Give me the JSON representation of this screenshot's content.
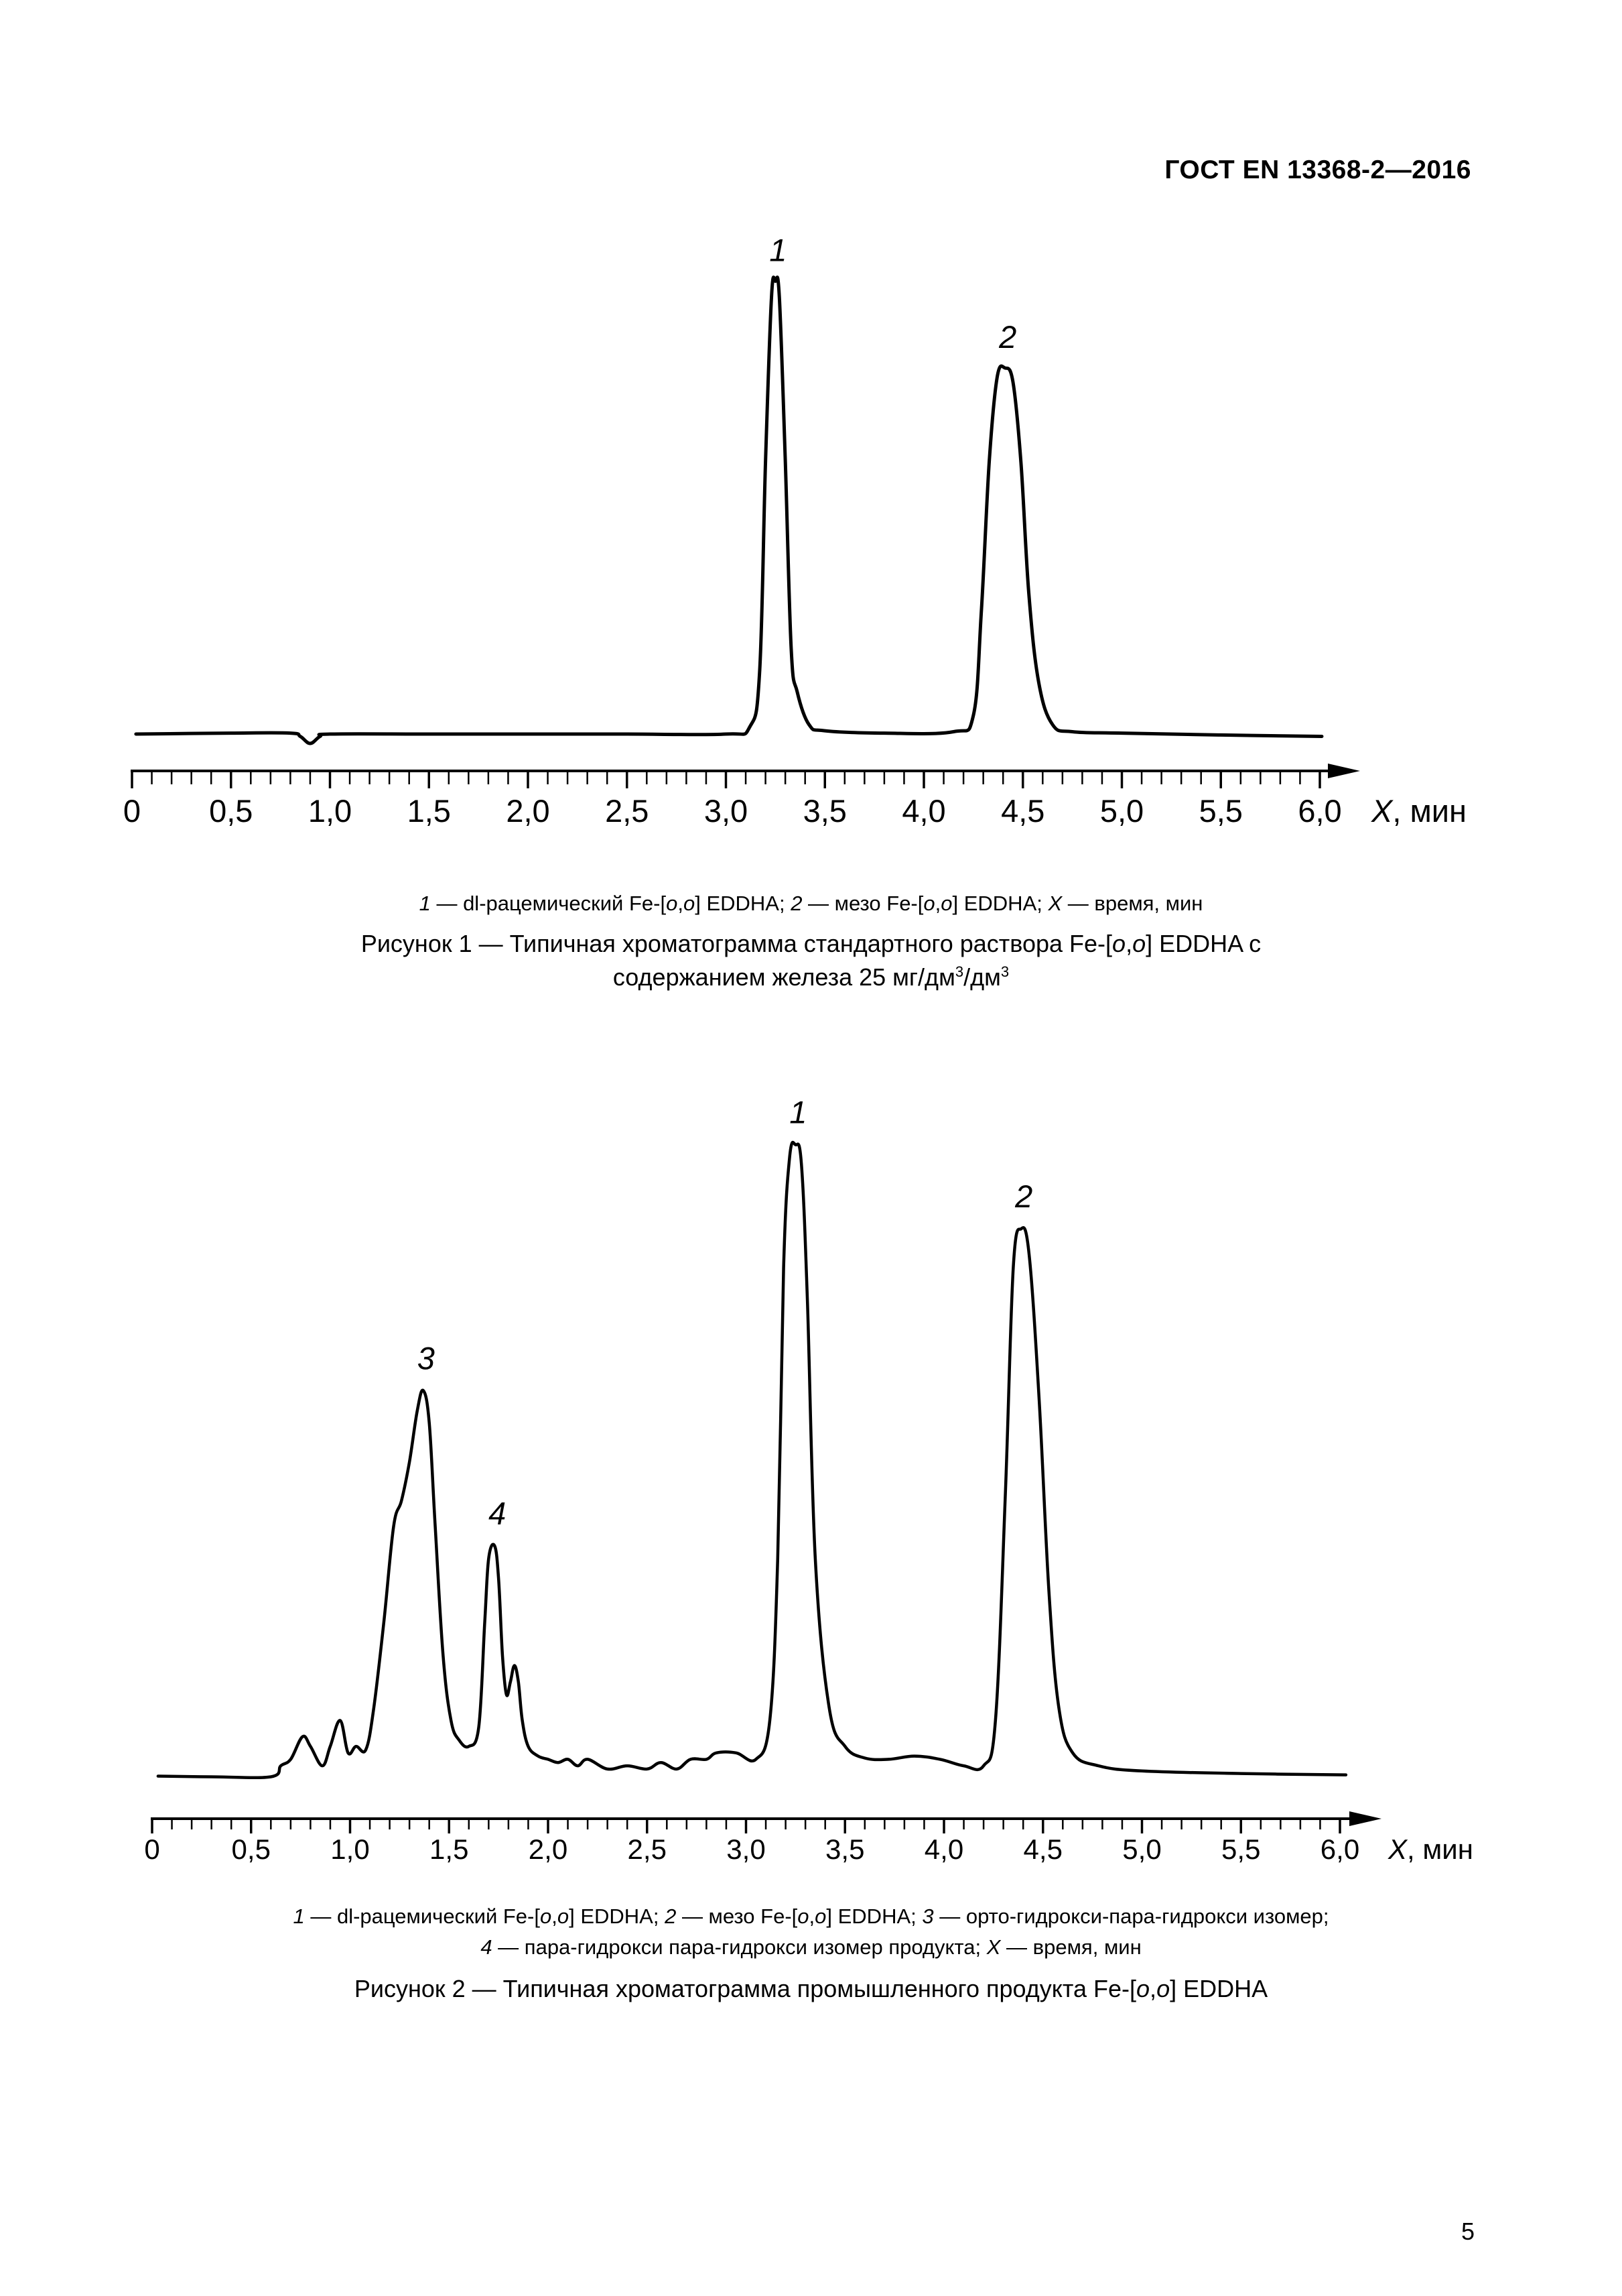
{
  "header": {
    "standard": "ГОСТ EN 13368-2—2016"
  },
  "page_number": "5",
  "chart_data": [
    {
      "type": "line",
      "title": "Рисунок 1 — Типичная хроматограмма стандартного раствора Fe-[o,o] EDDHA с содержанием железа 25 мг/дм3/дм3",
      "xlabel": "X, мин",
      "xlim": [
        0,
        6.25
      ],
      "ylim": [
        0,
        1.0
      ],
      "x_tick_labels": [
        "0",
        "0,5",
        "1,0",
        "1,5",
        "2,0",
        "2,5",
        "3,0",
        "3,5",
        "4,0",
        "4,5",
        "5,0",
        "5,5",
        "6,0"
      ],
      "y_axis_shown": false,
      "grid": false,
      "peaks": [
        {
          "label": "1",
          "x": 3.25,
          "y": 0.985
        },
        {
          "label": "2",
          "x": 4.41,
          "y": 0.8
        }
      ],
      "series": [
        {
          "x": [
            0.02,
            0.5,
            0.8,
            0.85,
            0.9,
            0.95,
            1.0,
            1.5,
            2.0,
            2.5,
            3.0,
            3.12,
            3.17,
            3.2,
            3.23,
            3.25,
            3.27,
            3.3,
            3.33,
            3.36,
            3.42,
            3.5,
            3.8,
            4.15,
            4.25,
            4.29,
            4.33,
            4.37,
            4.41,
            4.45,
            4.49,
            4.53,
            4.58,
            4.65,
            4.75,
            5.0,
            5.5,
            6.01
          ],
          "y": [
            0.02,
            0.022,
            0.022,
            0.015,
            0.0,
            0.015,
            0.02,
            0.02,
            0.02,
            0.02,
            0.02,
            0.035,
            0.15,
            0.6,
            0.95,
            0.985,
            0.95,
            0.6,
            0.2,
            0.11,
            0.04,
            0.027,
            0.022,
            0.025,
            0.06,
            0.28,
            0.6,
            0.78,
            0.8,
            0.77,
            0.6,
            0.32,
            0.13,
            0.04,
            0.025,
            0.022,
            0.018,
            0.015
          ]
        }
      ]
    },
    {
      "type": "line",
      "title": "Рисунок 2 — Типичная хроматограмма промышленного продукта Fe-[o,o] EDDHA",
      "xlabel": "X, мин",
      "xlim": [
        0,
        6.25
      ],
      "ylim": [
        0,
        1.0
      ],
      "x_tick_labels": [
        "0",
        "0,5",
        "1,0",
        "1,5",
        "2,0",
        "2,5",
        "3,0",
        "3,5",
        "4,0",
        "4,5",
        "5,0",
        "5,5",
        "6,0"
      ],
      "y_axis_shown": false,
      "grid": false,
      "peaks": [
        {
          "label": "1",
          "x": 3.25,
          "y": 0.99
        },
        {
          "label": "2",
          "x": 4.39,
          "y": 0.86
        },
        {
          "label": "3",
          "x": 1.37,
          "y": 0.61
        },
        {
          "label": "4",
          "x": 1.73,
          "y": 0.37
        }
      ],
      "series": [
        {
          "x": [
            0.03,
            0.3,
            0.6,
            0.65,
            0.7,
            0.76,
            0.8,
            0.86,
            0.9,
            0.95,
            0.99,
            1.03,
            1.08,
            1.12,
            1.17,
            1.22,
            1.26,
            1.3,
            1.34,
            1.37,
            1.4,
            1.43,
            1.47,
            1.51,
            1.55,
            1.6,
            1.65,
            1.68,
            1.7,
            1.73,
            1.75,
            1.77,
            1.79,
            1.81,
            1.83,
            1.85,
            1.87,
            1.9,
            1.95,
            2.0,
            2.05,
            2.1,
            2.15,
            2.2,
            2.3,
            2.4,
            2.5,
            2.57,
            2.65,
            2.72,
            2.8,
            2.85,
            2.95,
            3.05,
            3.12,
            3.16,
            3.19,
            3.22,
            3.25,
            3.28,
            3.31,
            3.35,
            3.42,
            3.5,
            3.6,
            3.72,
            3.85,
            3.98,
            4.1,
            4.2,
            4.26,
            4.31,
            4.35,
            4.39,
            4.43,
            4.48,
            4.53,
            4.58,
            4.65,
            4.78,
            5.0,
            5.5,
            6.03
          ],
          "y": [
            0.014,
            0.013,
            0.013,
            0.03,
            0.04,
            0.075,
            0.06,
            0.03,
            0.06,
            0.1,
            0.05,
            0.06,
            0.055,
            0.12,
            0.25,
            0.4,
            0.44,
            0.5,
            0.58,
            0.61,
            0.56,
            0.4,
            0.2,
            0.1,
            0.07,
            0.06,
            0.09,
            0.25,
            0.35,
            0.37,
            0.32,
            0.2,
            0.14,
            0.16,
            0.185,
            0.16,
            0.1,
            0.06,
            0.045,
            0.04,
            0.035,
            0.04,
            0.03,
            0.04,
            0.025,
            0.03,
            0.025,
            0.035,
            0.025,
            0.04,
            0.04,
            0.05,
            0.05,
            0.04,
            0.1,
            0.35,
            0.8,
            0.97,
            0.99,
            0.96,
            0.75,
            0.35,
            0.12,
            0.06,
            0.042,
            0.04,
            0.045,
            0.04,
            0.03,
            0.03,
            0.1,
            0.45,
            0.8,
            0.86,
            0.82,
            0.6,
            0.3,
            0.12,
            0.05,
            0.03,
            0.022,
            0.018,
            0.016
          ]
        }
      ]
    }
  ],
  "figure1": {
    "legend": {
      "n1": "1",
      "t1": " — dl-рацемический Fe-[",
      "o1a": "o",
      "c1": ",",
      "o1b": "o",
      "t1b": "] EDDHA; ",
      "n2": "2",
      "t2": " — мезо Fe-[",
      "o2a": "o",
      "c2": ",",
      "o2b": "o",
      "t2b": "] EDDHA; ",
      "nx": "X",
      "tx": " — время, мин"
    },
    "caption": {
      "line1a": "Рисунок 1 — Типичная хроматограмма стандартного раствора Fe-[",
      "o_a": "o",
      "comma": ",",
      "o_b": "o",
      "line1b": "] EDDHA с",
      "line2a": "содержанием железа 25 мг/дм",
      "sup1": "3",
      "line2b": "/дм",
      "sup2": "3"
    }
  },
  "figure2": {
    "legend": {
      "n1": "1",
      "t1": " — dl-рацемический Fe-[",
      "o1a": "o",
      "c1": ",",
      "o1b": "o",
      "t1b": "] EDDHA; ",
      "n2": "2",
      "t2": " — мезо Fe-[",
      "o2a": "o",
      "c2": ",",
      "o2b": "o",
      "t2b": "] EDDHA; ",
      "n3": "3",
      "t3": " — орто-гидрокси-пара-гидрокси изомер;",
      "n4": "4",
      "t4": " — пара-гидрокси пара-гидрокси изомер продукта; ",
      "nx": "X",
      "tx": " — время, мин"
    },
    "caption": {
      "line1a": "Рисунок 2 — Типичная хроматограмма промышленного продукта Fe-[",
      "o_a": "o",
      "comma": ",",
      "o_b": "o",
      "line1b": "] EDDHA"
    }
  }
}
